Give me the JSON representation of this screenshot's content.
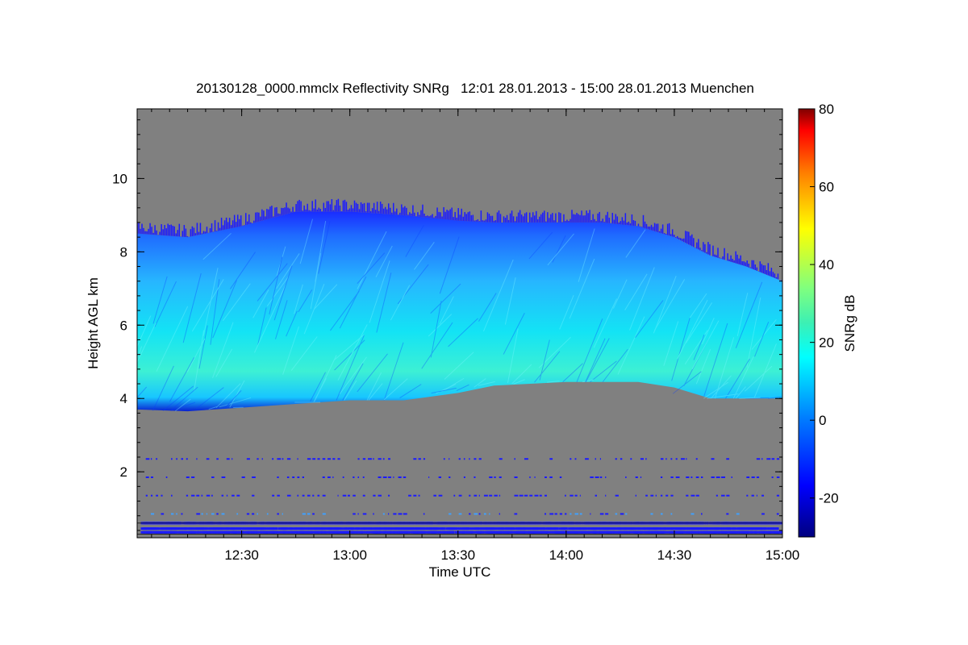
{
  "chart_data": {
    "type": "heatmap",
    "title": "20130128_0000.mmclx Reflectivity SNRg   12:01 28.01.2013 - 15:00 28.01.2013 Muenchen",
    "xlabel": "Time UTC",
    "ylabel": "Height AGL km",
    "colorbar_label": "SNRg dB",
    "x_range_minutes": [
      721,
      900
    ],
    "x_ticks": [
      {
        "minute": 750,
        "label": "12:30"
      },
      {
        "minute": 780,
        "label": "13:00"
      },
      {
        "minute": 810,
        "label": "13:30"
      },
      {
        "minute": 840,
        "label": "14:00"
      },
      {
        "minute": 870,
        "label": "14:30"
      },
      {
        "minute": 900,
        "label": "15:00"
      }
    ],
    "y_range_km": [
      0.2,
      11.9
    ],
    "y_ticks": [
      2,
      4,
      6,
      8,
      10
    ],
    "colorbar_range_db": [
      -30,
      80
    ],
    "colorbar_ticks": [
      -20,
      0,
      20,
      40,
      60,
      80
    ],
    "background_color": "#808080",
    "cloud_layer": {
      "description_values": "cloud echo between base and top heights (km) over time",
      "times_minutes": [
        721,
        735,
        750,
        765,
        780,
        795,
        810,
        820,
        830,
        840,
        850,
        860,
        870,
        880,
        890,
        900
      ],
      "base_km": [
        3.7,
        3.65,
        3.75,
        3.85,
        3.95,
        3.95,
        4.15,
        4.35,
        4.4,
        4.45,
        4.45,
        4.45,
        4.3,
        4.0,
        4.0,
        4.0
      ],
      "top_km": [
        8.5,
        8.4,
        8.7,
        9.1,
        9.1,
        9.0,
        8.85,
        8.8,
        8.8,
        8.8,
        8.8,
        8.7,
        8.4,
        7.9,
        7.6,
        7.2
      ],
      "peak_snr_db": 18
    },
    "clutter_levels_km": [
      0.35,
      0.45,
      0.6,
      0.85,
      1.35,
      1.85,
      2.35
    ]
  }
}
